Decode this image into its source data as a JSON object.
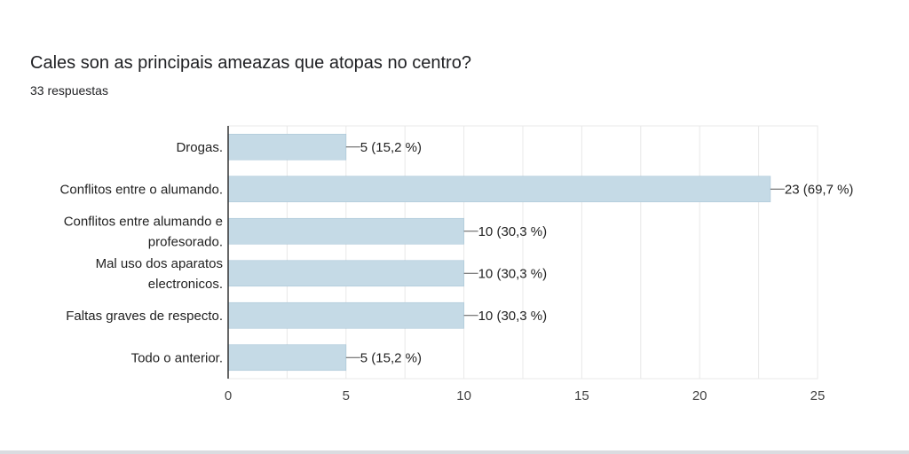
{
  "header": {
    "title": "Cales son as principais ameazas que atopas no centro?",
    "response_count": "33 respuestas"
  },
  "colors": {
    "bar": "#c5dae6",
    "bar_stroke": "#a9c6d8",
    "axis": "#333333",
    "grid": "#e8e8e8"
  },
  "chart_data": {
    "type": "bar",
    "orientation": "horizontal",
    "categories": [
      [
        "Drogas."
      ],
      [
        "Conflitos entre o alumando."
      ],
      [
        "Conflitos entre alumando e",
        "profesorado."
      ],
      [
        "Mal uso dos aparatos",
        "electronicos."
      ],
      [
        "Faltas graves de respecto."
      ],
      [
        "Todo o anterior."
      ]
    ],
    "values": [
      5,
      23,
      10,
      10,
      10,
      5
    ],
    "data_labels": [
      "5 (15,2 %)",
      "23 (69,7 %)",
      "10 (30,3 %)",
      "10 (30,3 %)",
      "10 (30,3 %)",
      "5 (15,2 %)"
    ],
    "xlim": [
      0,
      25
    ],
    "xticks": [
      0,
      5,
      10,
      15,
      20,
      25
    ],
    "grid": true
  }
}
